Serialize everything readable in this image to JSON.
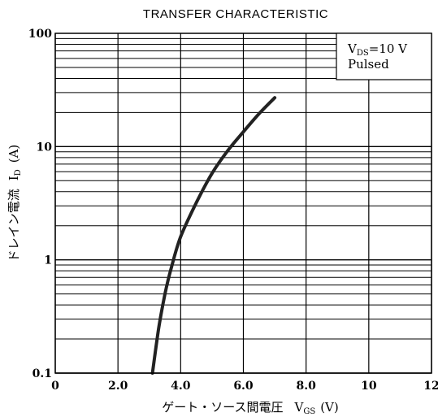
{
  "chart_data": {
    "type": "line",
    "title": "TRANSFER CHARACTERISTIC",
    "xlabel": "ゲート・ソース間電圧",
    "xlabel_symbol": "V",
    "xlabel_sub": "GS",
    "xlabel_unit": "(V)",
    "ylabel": "ドレイン電流",
    "ylabel_symbol": "I",
    "ylabel_sub": "D",
    "ylabel_unit": "(A)",
    "x_scale": "linear",
    "y_scale": "log",
    "xlim": [
      0,
      12
    ],
    "ylim": [
      0.1,
      100
    ],
    "x_ticks": [
      0,
      2,
      4,
      6,
      8,
      10,
      12
    ],
    "x_tick_labels": [
      "0",
      "2.0",
      "4.0",
      "6.0",
      "8.0",
      "10",
      "12"
    ],
    "y_ticks": [
      0.1,
      1,
      10,
      100
    ],
    "y_tick_labels": [
      "0.1",
      "1",
      "10",
      "100"
    ],
    "grid": true,
    "legend_position": "top-right",
    "annotation": {
      "symbol": "V",
      "sub": "DS",
      "value": "=10 V",
      "line2": "Pulsed"
    },
    "series": [
      {
        "x": [
          3.1,
          3.3,
          3.5,
          3.7,
          4.0,
          4.5,
          5.0,
          5.5,
          6.0,
          6.5,
          7.0
        ],
        "values": [
          0.1,
          0.25,
          0.5,
          0.85,
          1.6,
          3.2,
          5.8,
          9.2,
          13.5,
          19.5,
          27
        ]
      }
    ]
  }
}
